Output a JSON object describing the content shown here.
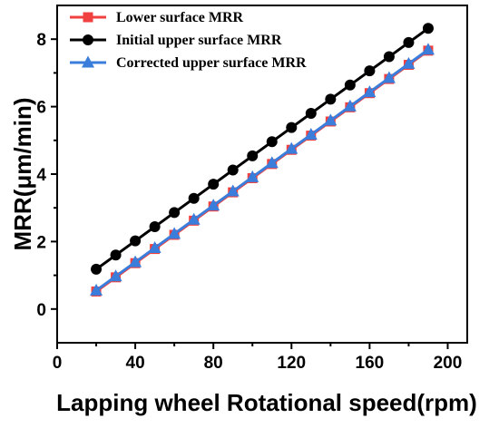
{
  "chart_data": {
    "type": "line",
    "title": "",
    "xlabel": "Lapping wheel Rotational speed(rpm)",
    "ylabel": "MRR(μm/min)",
    "xlim": [
      0,
      210
    ],
    "ylim": [
      -1,
      9
    ],
    "xticks": [
      0,
      40,
      80,
      120,
      160,
      200
    ],
    "yticks": [
      0,
      2,
      4,
      6,
      8
    ],
    "x_tick_labels": [
      "0",
      "40",
      "80",
      "120",
      "160",
      "200"
    ],
    "y_tick_labels": [
      "0",
      "2",
      "4",
      "6",
      "8"
    ],
    "legend_position": "top-left",
    "grid": false,
    "x": [
      20,
      30,
      40,
      50,
      60,
      70,
      80,
      90,
      100,
      110,
      120,
      130,
      140,
      150,
      160,
      170,
      180,
      190
    ],
    "series": [
      {
        "name": "Lower surface MRR",
        "color": "#f04040",
        "marker": "square",
        "values": [
          0.52,
          0.94,
          1.36,
          1.78,
          2.2,
          2.62,
          3.04,
          3.46,
          3.88,
          4.3,
          4.72,
          5.14,
          5.56,
          5.98,
          6.4,
          6.82,
          7.24,
          7.66
        ]
      },
      {
        "name": "Initial upper surface MRR",
        "color": "#000000",
        "marker": "circle",
        "values": [
          1.18,
          1.6,
          2.02,
          2.44,
          2.86,
          3.28,
          3.7,
          4.12,
          4.54,
          4.96,
          5.38,
          5.8,
          6.22,
          6.64,
          7.06,
          7.48,
          7.9,
          8.32
        ]
      },
      {
        "name": "Corrected upper surface MRR",
        "color": "#3a7ddb",
        "marker": "triangle",
        "values": [
          0.55,
          0.97,
          1.39,
          1.81,
          2.23,
          2.65,
          3.07,
          3.49,
          3.91,
          4.33,
          4.75,
          5.17,
          5.59,
          6.01,
          6.43,
          6.85,
          7.27,
          7.69
        ]
      }
    ]
  }
}
